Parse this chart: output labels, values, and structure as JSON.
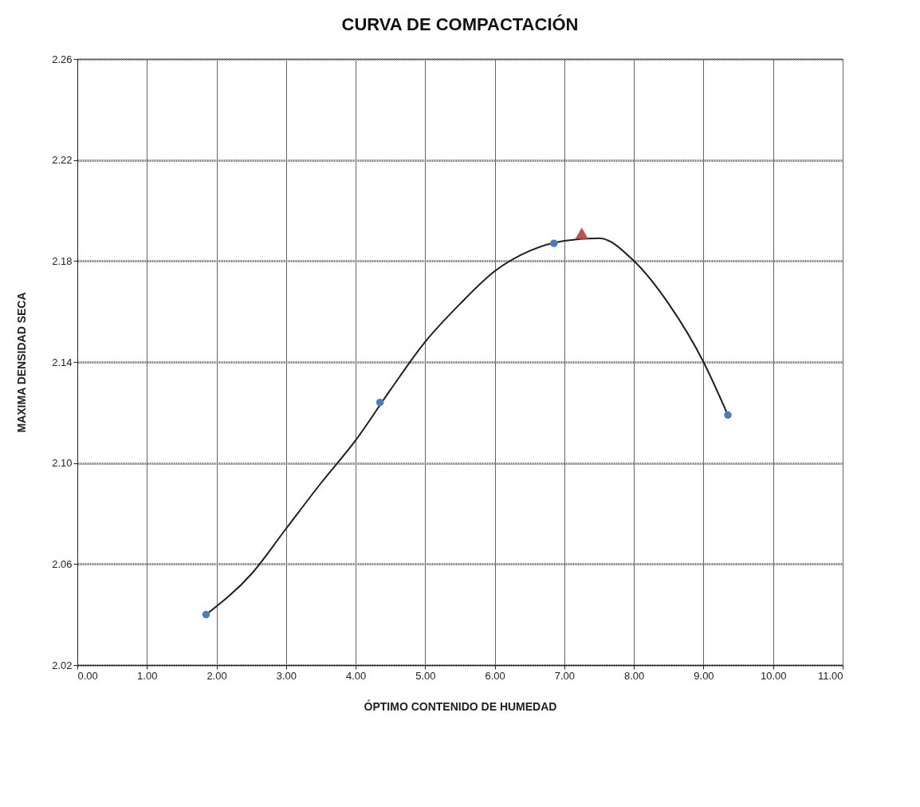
{
  "chart_data": {
    "type": "scatter",
    "title": "CURVA DE COMPACTACIÓN",
    "xlabel": "ÓPTIMO CONTENIDO DE HUMEDAD",
    "ylabel": "MAXIMA DENSIDAD SECA",
    "xlim": [
      0,
      11
    ],
    "ylim": [
      2.02,
      2.26
    ],
    "xticks": [
      {
        "value": 0,
        "label": "0.00"
      },
      {
        "value": 1,
        "label": "1.00"
      },
      {
        "value": 2,
        "label": "2.00"
      },
      {
        "value": 3,
        "label": "3.00"
      },
      {
        "value": 4,
        "label": "4.00"
      },
      {
        "value": 5,
        "label": "5.00"
      },
      {
        "value": 6,
        "label": "6.00"
      },
      {
        "value": 7,
        "label": "7.00"
      },
      {
        "value": 8,
        "label": "8.00"
      },
      {
        "value": 9,
        "label": "9.00"
      },
      {
        "value": 10,
        "label": "10.00"
      },
      {
        "value": 11,
        "label": "11.00"
      }
    ],
    "yticks": [
      2.02,
      2.06,
      {
        "value": 2.1,
        "label": "2.10"
      },
      2.14,
      2.18,
      2.22,
      2.26
    ],
    "grid": true,
    "series": [
      {
        "type": "line",
        "color": "#1f1f1f",
        "marker": "none",
        "x": [
          1.85,
          2.5,
          3,
          3.5,
          4,
          4.5,
          5,
          5.5,
          6,
          6.5,
          7,
          7.5,
          8,
          8.5,
          9,
          9.35
        ],
        "values": [
          2.04,
          2.056,
          2.074,
          2.092,
          2.109,
          2.129,
          2.148,
          2.163,
          2.176,
          2.184,
          2.188,
          2.189,
          2.18,
          2.163,
          2.14,
          2.119
        ]
      },
      {
        "color": "#4a7ebb",
        "marker": "circle",
        "x": [
          1.85,
          4.35,
          6.85,
          9.35
        ],
        "values": [
          2.04,
          2.124,
          2.187,
          2.119
        ]
      },
      {
        "color": "#c0504d",
        "marker": "triangle",
        "x": [
          7.25
        ],
        "values": [
          2.191
        ]
      }
    ]
  }
}
